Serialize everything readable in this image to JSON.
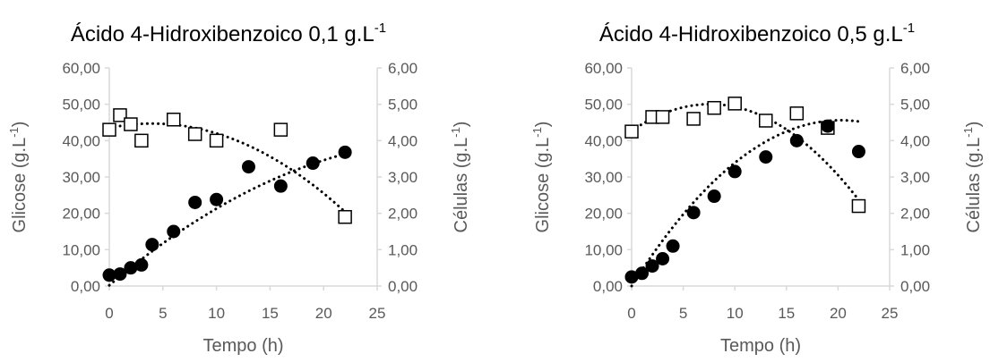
{
  "chart_data": [
    {
      "type": "scatter",
      "title_main": "Ácido 4-Hidroxibenzoico 0,1 g.L",
      "title_sup": "-1",
      "xlabel": "Tempo (h)",
      "ylabel_left_main": "Glicose (g.L",
      "ylabel_left_sup": "-1",
      "ylabel_left_end": ")",
      "ylabel_right_main": "Células (g.L",
      "ylabel_right_sup": "-1",
      "ylabel_right_end": ")",
      "xlim": [
        0,
        25
      ],
      "ylim_left": [
        0,
        60
      ],
      "ylim_right": [
        0,
        6
      ],
      "x_ticks": [
        "0",
        "5",
        "10",
        "15",
        "20",
        "25"
      ],
      "y_left_ticks": [
        "0,00",
        "10,00",
        "20,00",
        "30,00",
        "40,00",
        "50,00",
        "60,00"
      ],
      "y_right_ticks": [
        "0,00",
        "1,00",
        "2,00",
        "3,00",
        "4,00",
        "5,00",
        "6,00"
      ],
      "grid": false,
      "series": [
        {
          "axis": "left",
          "marker": "open-square",
          "points": [
            [
              0,
              43
            ],
            [
              1,
              47
            ],
            [
              2,
              44.5
            ],
            [
              3,
              40
            ],
            [
              6,
              45.8
            ],
            [
              8,
              41.8
            ],
            [
              10,
              40
            ],
            [
              16,
              43
            ],
            [
              22,
              19
            ]
          ]
        },
        {
          "axis": "right",
          "marker": "filled-circle",
          "points": [
            [
              0,
              0.3
            ],
            [
              1,
              0.33
            ],
            [
              2,
              0.5
            ],
            [
              3,
              0.58
            ],
            [
              4,
              1.14
            ],
            [
              6,
              1.5
            ],
            [
              8,
              2.3
            ],
            [
              10,
              2.38
            ],
            [
              13,
              3.28
            ],
            [
              16,
              2.75
            ],
            [
              19,
              3.38
            ],
            [
              22,
              3.68
            ]
          ]
        }
      ],
      "trendlines": [
        {
          "axis": "left",
          "style": "dotted",
          "x_from": 0,
          "x_to": 22,
          "coef": [
            43.5,
            0.6,
            -0.075
          ]
        },
        {
          "axis": "right",
          "style": "dotted",
          "x_from": 0,
          "x_to": 22,
          "coef": [
            0.02,
            0.25,
            -0.0039
          ]
        }
      ]
    },
    {
      "type": "scatter",
      "title_main": "Ácido 4-Hidroxibenzoico 0,5 g.L",
      "title_sup": "-1",
      "xlabel": "Tempo (h)",
      "ylabel_left_main": "Glicose (g.L",
      "ylabel_left_sup": "-1",
      "ylabel_left_end": ")",
      "ylabel_right_main": "Células (g.L",
      "ylabel_right_sup": "-1",
      "ylabel_right_end": ")",
      "xlim": [
        0,
        25
      ],
      "ylim_left": [
        0,
        60
      ],
      "ylim_right": [
        0,
        6
      ],
      "x_ticks": [
        "0",
        "5",
        "10",
        "15",
        "20",
        "25"
      ],
      "y_left_ticks": [
        "0,00",
        "10,00",
        "20,00",
        "30,00",
        "40,00",
        "50,00",
        "60,00"
      ],
      "y_right_ticks": [
        "0,00",
        "1,00",
        "2,00",
        "3,00",
        "4,00",
        "5,00",
        "6,00"
      ],
      "grid": false,
      "series": [
        {
          "axis": "left",
          "marker": "open-square",
          "points": [
            [
              0,
              42.5
            ],
            [
              2,
              46.5
            ],
            [
              3,
              46.5
            ],
            [
              6,
              46
            ],
            [
              8,
              49
            ],
            [
              10,
              50.2
            ],
            [
              13,
              45.5
            ],
            [
              16,
              47.5
            ],
            [
              19,
              43.5
            ],
            [
              22,
              22
            ]
          ]
        },
        {
          "axis": "right",
          "marker": "filled-circle",
          "points": [
            [
              0,
              0.25
            ],
            [
              1,
              0.35
            ],
            [
              2,
              0.55
            ],
            [
              3,
              0.75
            ],
            [
              4,
              1.1
            ],
            [
              6,
              2.02
            ],
            [
              8,
              2.47
            ],
            [
              10,
              3.15
            ],
            [
              13,
              3.55
            ],
            [
              16,
              4.0
            ],
            [
              19,
              4.4
            ],
            [
              22,
              3.7
            ]
          ]
        }
      ],
      "trendlines": [
        {
          "axis": "left",
          "style": "dotted",
          "x_from": 0,
          "x_to": 22,
          "coef": [
            42.7,
            1.93,
            -0.127
          ]
        },
        {
          "axis": "right",
          "style": "dotted",
          "x_from": 0,
          "x_to": 22,
          "coef": [
            0.0,
            0.45,
            -0.0111
          ]
        }
      ]
    }
  ]
}
